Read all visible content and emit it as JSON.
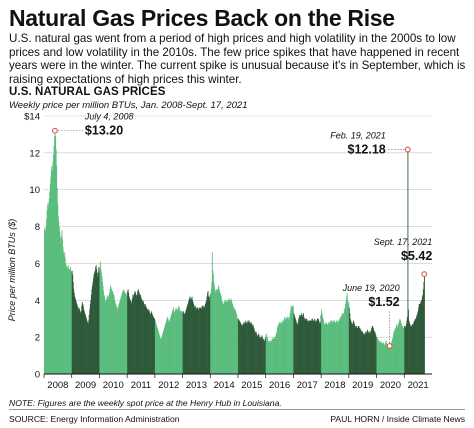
{
  "headline": "Natural Gas Prices Back on the Rise",
  "intro": "U.S. natural gas went from a period of high prices and high volatility in the 2000s to low prices and low volatility in the 2010s. The few price spikes that have happened in recent years were in the winter. The current spike is unusual because it's in September, which is raising expectations of high prices this winter.",
  "note": "NOTE: Figures are the weekly spot price at the Henry Hub in Louisiana.",
  "source": "SOURCE: Energy Information Administration",
  "credit": "PAUL HORN / Inside Climate News",
  "colors": {
    "light_green": "#5bbd7e",
    "dark_green": "#2f5a3a",
    "highlight_red": "#d9473e"
  },
  "chart_data": {
    "type": "bar",
    "title": "U.S. NATURAL GAS PRICES",
    "subtitle": "Weekly price per million BTUs, Jan. 2008-Sept. 17, 2021",
    "ylabel": "Price per million BTUs ($)",
    "ylim": [
      0,
      14
    ],
    "yticks": [
      0,
      2,
      4,
      6,
      8,
      10,
      12,
      14
    ],
    "ytick_labels": [
      "0",
      "2",
      "4",
      "6",
      "8",
      "10",
      "12",
      "$14"
    ],
    "x_labels": [
      "2008",
      "2009",
      "2010",
      "2011",
      "2012",
      "2013",
      "2014",
      "2015",
      "2016",
      "2017",
      "2018",
      "2019",
      "2020",
      "2021"
    ],
    "grid": true,
    "yearly_weekly_prices": [
      [
        7.9,
        7.8,
        7.6,
        8.0,
        8.4,
        8.9,
        9.2,
        9.3,
        9.1,
        9.5,
        9.9,
        10.3,
        10.7,
        11.1,
        11.3,
        11.0,
        11.5,
        11.9,
        12.4,
        12.9,
        13.2,
        12.9,
        12.2,
        11.3,
        10.1,
        9.2,
        8.6,
        8.3,
        8.0,
        7.7,
        7.4,
        7.1,
        7.5,
        7.8,
        7.3,
        6.9,
        6.6,
        6.4,
        6.6,
        6.3,
        6.0,
        5.9,
        5.8,
        5.7,
        5.8,
        5.9,
        5.7,
        5.6,
        5.7,
        5.8,
        5.6,
        5.5
      ],
      [
        5.6,
        5.4,
        5.0,
        4.6,
        4.4,
        4.2,
        4.1,
        4.0,
        3.9,
        3.8,
        3.7,
        3.6,
        3.5,
        3.6,
        3.5,
        3.4,
        3.3,
        3.4,
        3.7,
        3.9,
        3.8,
        3.7,
        3.5,
        3.4,
        3.3,
        3.2,
        3.1,
        3.0,
        2.9,
        2.8,
        2.7,
        2.9,
        3.2,
        3.5,
        3.8,
        4.0,
        4.3,
        4.6,
        4.8,
        5.0,
        5.2,
        5.4,
        5.5,
        5.6,
        5.8,
        5.9,
        5.7,
        5.5,
        5.3,
        5.5,
        5.8,
        5.6
      ],
      [
        5.8,
        6.1,
        5.7,
        5.5,
        5.3,
        5.0,
        4.8,
        4.5,
        4.3,
        4.2,
        4.0,
        3.9,
        4.0,
        4.1,
        4.2,
        4.3,
        4.1,
        4.2,
        4.4,
        4.6,
        4.8,
        4.7,
        4.6,
        4.5,
        4.5,
        4.4,
        4.3,
        4.2,
        4.0,
        3.9,
        3.8,
        3.7,
        3.6,
        3.5,
        3.6,
        3.7,
        3.8,
        3.9,
        4.0,
        4.1,
        4.2,
        4.3,
        4.4,
        4.5,
        4.5,
        4.6,
        4.5,
        4.4,
        4.3,
        4.4,
        4.3,
        4.2
      ],
      [
        4.5,
        4.6,
        4.4,
        4.2,
        4.1,
        4.0,
        4.0,
        3.9,
        3.8,
        4.1,
        4.3,
        4.2,
        4.3,
        4.4,
        4.5,
        4.4,
        4.3,
        4.2,
        4.3,
        4.5,
        4.6,
        4.5,
        4.4,
        4.3,
        4.3,
        4.2,
        4.1,
        4.0,
        3.9,
        4.0,
        3.9,
        3.8,
        3.7,
        3.8,
        3.7,
        3.6,
        3.6,
        3.5,
        3.5,
        3.4,
        3.5,
        3.4,
        3.3,
        3.2,
        3.3,
        3.4,
        3.3,
        3.2,
        3.1,
        3.1,
        3.0,
        3.0
      ],
      [
        2.9,
        2.8,
        2.7,
        2.6,
        2.5,
        2.4,
        2.3,
        2.2,
        2.1,
        2.0,
        1.9,
        1.9,
        2.0,
        2.1,
        2.2,
        2.3,
        2.4,
        2.5,
        2.6,
        2.7,
        2.8,
        2.9,
        3.0,
        3.1,
        3.0,
        2.9,
        2.8,
        2.9,
        3.0,
        3.1,
        3.2,
        3.3,
        3.4,
        3.5,
        3.6,
        3.4,
        3.3,
        3.4,
        3.5,
        3.6,
        3.5,
        3.4,
        3.5,
        3.6,
        3.7,
        3.6,
        3.5,
        3.4,
        3.4,
        3.4,
        3.4,
        3.4
      ],
      [
        3.3,
        3.4,
        3.3,
        3.2,
        3.3,
        3.4,
        3.5,
        3.6,
        3.7,
        3.8,
        3.9,
        4.0,
        4.1,
        4.2,
        4.1,
        4.0,
        4.1,
        4.2,
        4.0,
        3.9,
        3.8,
        3.7,
        3.6,
        3.7,
        3.6,
        3.5,
        3.6,
        3.6,
        3.6,
        3.5,
        3.5,
        3.6,
        3.6,
        3.6,
        3.5,
        3.6,
        3.7,
        3.7,
        3.7,
        3.6,
        3.6,
        3.7,
        3.8,
        3.9,
        4.0,
        4.2,
        4.4,
        4.5,
        4.2,
        4.0,
        4.2,
        4.3
      ],
      [
        4.4,
        4.6,
        5.0,
        6.6,
        5.6,
        5.4,
        5.0,
        4.8,
        4.6,
        4.4,
        4.5,
        4.6,
        4.5,
        4.6,
        4.7,
        4.8,
        4.6,
        4.5,
        4.4,
        4.3,
        4.2,
        4.0,
        3.9,
        3.8,
        3.8,
        3.9,
        3.9,
        4.0,
        4.0,
        4.0,
        3.9,
        3.9,
        4.0,
        4.0,
        4.1,
        4.0,
        4.0,
        4.0,
        4.1,
        4.0,
        3.9,
        3.8,
        3.7,
        3.6,
        3.6,
        3.5,
        3.5,
        3.4,
        3.3,
        3.2,
        3.0,
        3.0
      ],
      [
        3.0,
        2.9,
        2.9,
        2.8,
        2.8,
        2.7,
        2.6,
        2.7,
        2.6,
        2.7,
        2.8,
        2.8,
        2.7,
        2.8,
        2.9,
        2.8,
        2.7,
        2.8,
        2.9,
        2.8,
        2.9,
        2.8,
        2.8,
        2.7,
        2.8,
        2.7,
        2.6,
        2.7,
        2.6,
        2.5,
        2.4,
        2.3,
        2.2,
        2.3,
        2.2,
        2.1,
        2.0,
        2.1,
        2.2,
        2.1,
        2.0,
        1.9,
        2.0,
        2.0,
        2.1,
        2.0,
        1.9,
        1.9,
        1.8,
        1.8,
        1.9,
        2.0
      ],
      [
        2.2,
        2.1,
        2.0,
        1.9,
        1.8,
        1.7,
        1.8,
        1.7,
        1.8,
        1.7,
        1.8,
        1.9,
        1.9,
        2.0,
        1.9,
        1.9,
        2.0,
        2.0,
        2.1,
        2.2,
        2.3,
        2.5,
        2.6,
        2.7,
        2.7,
        2.8,
        2.8,
        2.7,
        2.8,
        2.7,
        2.8,
        2.9,
        2.8,
        2.9,
        3.0,
        3.1,
        3.0,
        2.9,
        3.0,
        3.1,
        3.0,
        3.1,
        3.0,
        2.9,
        3.1,
        3.3,
        3.5,
        3.7,
        3.6,
        3.7,
        3.6,
        3.7
      ],
      [
        3.3,
        3.2,
        3.1,
        3.0,
        2.9,
        2.8,
        2.7,
        2.7,
        2.8,
        3.0,
        3.1,
        3.2,
        3.1,
        3.2,
        3.3,
        3.2,
        3.1,
        3.2,
        3.3,
        3.1,
        3.0,
        2.9,
        3.0,
        3.0,
        3.0,
        2.9,
        2.9,
        2.8,
        2.9,
        2.9,
        2.9,
        2.9,
        2.9,
        2.9,
        3.0,
        3.0,
        2.9,
        2.9,
        2.9,
        3.0,
        2.9,
        2.8,
        2.9,
        2.9,
        3.0,
        3.0,
        3.0,
        2.9,
        2.8,
        2.7,
        2.8,
        3.2
      ],
      [
        3.5,
        3.3,
        3.1,
        3.0,
        2.9,
        2.7,
        2.7,
        2.7,
        2.8,
        2.8,
        2.7,
        2.7,
        2.7,
        2.8,
        2.8,
        2.7,
        2.8,
        2.9,
        2.9,
        2.9,
        2.8,
        2.8,
        2.9,
        2.9,
        2.9,
        2.8,
        2.8,
        2.8,
        2.9,
        2.9,
        2.8,
        2.8,
        2.9,
        2.9,
        3.0,
        3.0,
        3.1,
        3.1,
        3.2,
        3.3,
        3.3,
        3.2,
        3.3,
        3.5,
        3.6,
        3.8,
        4.0,
        4.2,
        4.4,
        4.0,
        3.8,
        3.9
      ],
      [
        3.6,
        3.3,
        3.0,
        2.9,
        2.8,
        2.7,
        2.7,
        2.8,
        2.9,
        2.8,
        2.7,
        2.6,
        2.5,
        2.6,
        2.6,
        2.5,
        2.5,
        2.6,
        2.6,
        2.5,
        2.5,
        2.4,
        2.4,
        2.3,
        2.3,
        2.3,
        2.2,
        2.2,
        2.1,
        2.2,
        2.2,
        2.3,
        2.2,
        2.3,
        2.4,
        2.3,
        2.2,
        2.3,
        2.2,
        2.3,
        2.2,
        2.4,
        2.5,
        2.6,
        2.6,
        2.5,
        2.4,
        2.3,
        2.3,
        2.2,
        2.1,
        2.0
      ],
      [
        2.0,
        1.9,
        1.9,
        1.8,
        1.8,
        1.7,
        1.7,
        1.8,
        1.7,
        1.7,
        1.6,
        1.7,
        1.7,
        1.6,
        1.6,
        1.6,
        1.7,
        1.8,
        1.7,
        1.6,
        1.6,
        1.6,
        1.6,
        1.6,
        1.52,
        1.6,
        1.6,
        1.7,
        1.8,
        1.9,
        2.0,
        2.2,
        2.3,
        2.4,
        2.4,
        2.5,
        2.6,
        2.7,
        2.5,
        2.6,
        2.7,
        2.8,
        2.9,
        3.0,
        2.9,
        2.8,
        2.7,
        2.6,
        2.6,
        2.5,
        2.5,
        2.6
      ],
      [
        2.6,
        2.5,
        2.6,
        2.7,
        2.9,
        3.1,
        12.18,
        3.5,
        2.9,
        2.8,
        2.7,
        2.6,
        2.6,
        2.6,
        2.7,
        2.7,
        2.7,
        2.8,
        2.9,
        2.9,
        3.0,
        3.0,
        3.1,
        3.2,
        3.3,
        3.4,
        3.6,
        3.8,
        3.8,
        3.8,
        3.9,
        4.0,
        4.0,
        4.2,
        4.3,
        4.6,
        5.0,
        5.42
      ]
    ],
    "annotations": [
      {
        "date": "July 4, 2008",
        "value": "$13.20",
        "year_index": 0,
        "week": 20
      },
      {
        "date": "Feb. 19, 2021",
        "value": "$12.18",
        "year_index": 13,
        "week": 6
      },
      {
        "date": "June 19, 2020",
        "value": "$1.52",
        "year_index": 12,
        "week": 24
      },
      {
        "date": "Sept. 17, 2021",
        "value": "$5.42",
        "year_index": 13,
        "week": 37
      }
    ]
  }
}
